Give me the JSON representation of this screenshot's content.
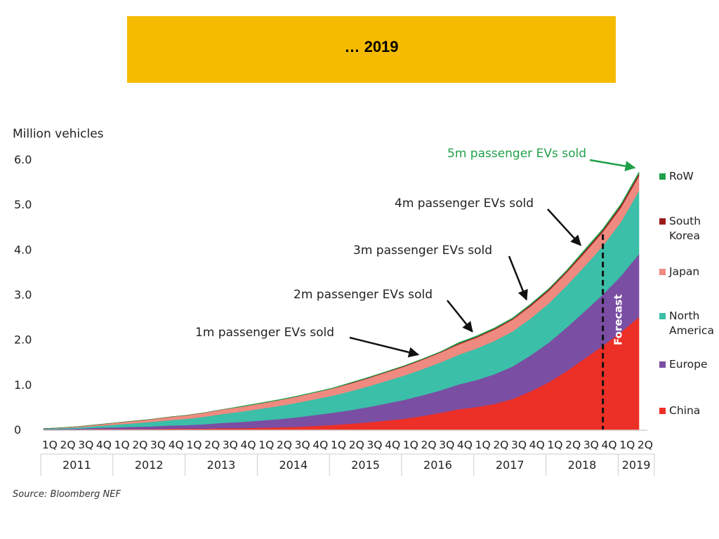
{
  "banner": {
    "title": "… 2019",
    "background": "#f5bb00"
  },
  "source": "Source: Bloomberg NEF",
  "chart_data": {
    "type": "area",
    "stacked": true,
    "ylabel": "Million vehicles",
    "ylim": [
      0,
      6.0
    ],
    "yticks": [
      "0",
      "1.0",
      "2.0",
      "3.0",
      "4.0",
      "5.0",
      "6.0"
    ],
    "quarter_labels": [
      "1Q",
      "2Q",
      "3Q",
      "4Q",
      "1Q",
      "2Q",
      "3Q",
      "4Q",
      "1Q",
      "2Q",
      "3Q",
      "4Q",
      "1Q",
      "2Q",
      "3Q",
      "4Q",
      "1Q",
      "2Q",
      "3Q",
      "4Q",
      "1Q",
      "2Q",
      "3Q",
      "4Q",
      "1Q",
      "2Q",
      "3Q",
      "4Q",
      "1Q",
      "2Q",
      "3Q",
      "4Q",
      "1Q",
      "2Q"
    ],
    "years": [
      "2011",
      "2012",
      "2013",
      "2014",
      "2015",
      "2016",
      "2017",
      "2018",
      "2019"
    ],
    "series": [
      {
        "name": "China",
        "color": "#ec3027",
        "values": [
          0.0,
          0.0,
          0.0,
          0.01,
          0.01,
          0.01,
          0.01,
          0.02,
          0.02,
          0.02,
          0.03,
          0.03,
          0.04,
          0.05,
          0.06,
          0.08,
          0.1,
          0.13,
          0.16,
          0.2,
          0.24,
          0.3,
          0.37,
          0.45,
          0.5,
          0.57,
          0.68,
          0.85,
          1.05,
          1.3,
          1.58,
          1.86,
          2.16,
          2.5
        ]
      },
      {
        "name": "Europe",
        "color": "#7a4ea3",
        "values": [
          0.01,
          0.01,
          0.02,
          0.03,
          0.04,
          0.05,
          0.06,
          0.07,
          0.08,
          0.1,
          0.12,
          0.14,
          0.16,
          0.18,
          0.21,
          0.24,
          0.27,
          0.3,
          0.34,
          0.38,
          0.42,
          0.46,
          0.5,
          0.55,
          0.6,
          0.66,
          0.72,
          0.8,
          0.88,
          0.97,
          1.05,
          1.14,
          1.25,
          1.4
        ]
      },
      {
        "name": "North America",
        "color": "#3bbfa8",
        "values": [
          0.01,
          0.02,
          0.03,
          0.04,
          0.06,
          0.08,
          0.1,
          0.12,
          0.14,
          0.17,
          0.2,
          0.23,
          0.26,
          0.29,
          0.32,
          0.35,
          0.38,
          0.42,
          0.46,
          0.5,
          0.54,
          0.58,
          0.62,
          0.66,
          0.7,
          0.74,
          0.78,
          0.82,
          0.87,
          0.93,
          1.0,
          1.08,
          1.2,
          1.4
        ]
      },
      {
        "name": "Japan",
        "color": "#ef8a80",
        "values": [
          0.0,
          0.01,
          0.02,
          0.03,
          0.04,
          0.05,
          0.06,
          0.07,
          0.08,
          0.09,
          0.1,
          0.11,
          0.12,
          0.13,
          0.14,
          0.15,
          0.16,
          0.17,
          0.18,
          0.19,
          0.2,
          0.21,
          0.22,
          0.23,
          0.24,
          0.25,
          0.26,
          0.27,
          0.28,
          0.29,
          0.3,
          0.31,
          0.32,
          0.33
        ]
      },
      {
        "name": "South Korea",
        "color": "#9b1b1b",
        "values": [
          0.0,
          0.0,
          0.0,
          0.0,
          0.0,
          0.0,
          0.0,
          0.0,
          0.0,
          0.0,
          0.0,
          0.0,
          0.0,
          0.0,
          0.0,
          0.0,
          0.0,
          0.01,
          0.01,
          0.01,
          0.01,
          0.01,
          0.01,
          0.02,
          0.02,
          0.02,
          0.02,
          0.03,
          0.03,
          0.03,
          0.04,
          0.04,
          0.05,
          0.05
        ]
      },
      {
        "name": "RoW",
        "color": "#21a04a",
        "values": [
          0.0,
          0.0,
          0.0,
          0.0,
          0.0,
          0.0,
          0.0,
          0.0,
          0.0,
          0.0,
          0.0,
          0.01,
          0.01,
          0.01,
          0.01,
          0.01,
          0.01,
          0.01,
          0.01,
          0.01,
          0.01,
          0.01,
          0.01,
          0.02,
          0.02,
          0.02,
          0.02,
          0.02,
          0.02,
          0.02,
          0.03,
          0.03,
          0.03,
          0.04
        ]
      }
    ],
    "legend": [
      "RoW",
      "South Korea",
      "Japan",
      "North America",
      "Europe",
      "China"
    ],
    "legend_labels": [
      [
        "RoW"
      ],
      [
        "South",
        "Korea"
      ],
      [
        "Japan"
      ],
      [
        "North",
        "America"
      ],
      [
        "Europe"
      ],
      [
        "China"
      ]
    ],
    "annotations": [
      {
        "text": "1m passenger EVs sold",
        "color": "#222222"
      },
      {
        "text": "2m passenger EVs sold",
        "color": "#222222"
      },
      {
        "text": "3m passenger EVs sold",
        "color": "#222222"
      },
      {
        "text": "4m passenger EVs sold",
        "color": "#222222"
      },
      {
        "text": "5m passenger EVs sold",
        "color": "#21a04a"
      }
    ],
    "forecast_label": "Forecast",
    "forecast_start_index": 31,
    "grid": false
  }
}
